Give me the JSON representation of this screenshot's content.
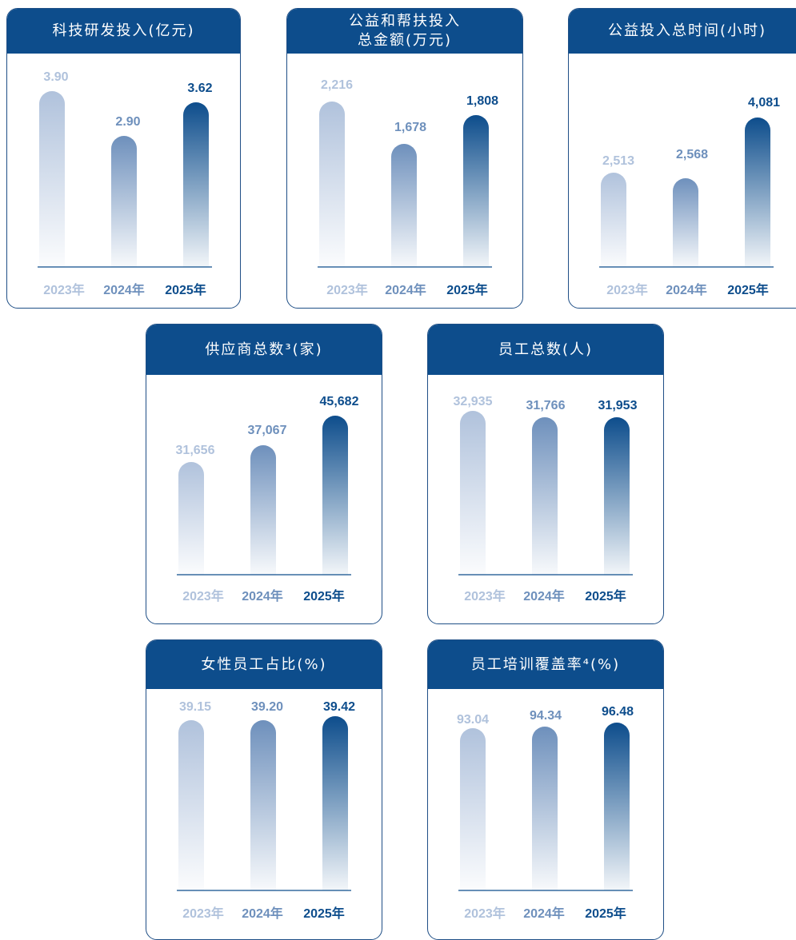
{
  "colors": {
    "header": "#0d4d8c",
    "year_2023": "#b0c2dc",
    "year_2024": "#6e90bc",
    "year_2025": "#0d4d8c"
  },
  "chart_data": [
    {
      "type": "bar",
      "title": "科技研发投入(亿元)",
      "categories": [
        "2023年",
        "2024年",
        "2025年"
      ],
      "values": [
        3.9,
        2.9,
        3.62
      ],
      "labels": [
        "3.90",
        "2.90",
        "3.62"
      ]
    },
    {
      "type": "bar",
      "title": "公益和帮扶投入\n总金额(万元)",
      "categories": [
        "2023年",
        "2024年",
        "2025年"
      ],
      "values": [
        2216,
        1678,
        1808
      ],
      "labels": [
        "2,216",
        "1,678",
        "1,808"
      ]
    },
    {
      "type": "bar",
      "title": "公益投入总时间(小时)",
      "categories": [
        "2023年",
        "2024年",
        "2025年"
      ],
      "values": [
        2513,
        2568,
        4081
      ],
      "labels": [
        "2,513",
        "2,568",
        "4,081"
      ]
    },
    {
      "type": "bar",
      "title": "供应商总数³(家)",
      "categories": [
        "2023年",
        "2024年",
        "2025年"
      ],
      "values": [
        31656,
        37067,
        45682
      ],
      "labels": [
        "31,656",
        "37,067",
        "45,682"
      ]
    },
    {
      "type": "bar",
      "title": "员工总数(人)",
      "categories": [
        "2023年",
        "2024年",
        "2025年"
      ],
      "values": [
        32935,
        31766,
        31953
      ],
      "labels": [
        "32,935",
        "31,766",
        "31,953"
      ]
    },
    {
      "type": "bar",
      "title": "女性员工占比(%)",
      "categories": [
        "2023年",
        "2024年",
        "2025年"
      ],
      "values": [
        39.15,
        39.2,
        39.42
      ],
      "labels": [
        "39.15",
        "39.20",
        "39.42"
      ]
    },
    {
      "type": "bar",
      "title": "员工培训覆盖率⁴(%)",
      "categories": [
        "2023年",
        "2024年",
        "2025年"
      ],
      "values": [
        93.04,
        94.34,
        96.48
      ],
      "labels": [
        "93.04",
        "94.34",
        "96.48"
      ]
    }
  ]
}
